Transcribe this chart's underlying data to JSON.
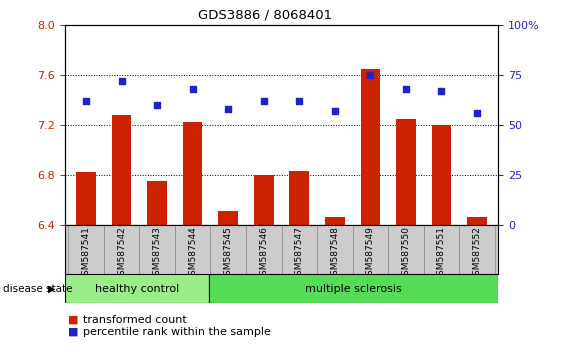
{
  "title": "GDS3886 / 8068401",
  "samples": [
    "GSM587541",
    "GSM587542",
    "GSM587543",
    "GSM587544",
    "GSM587545",
    "GSM587546",
    "GSM587547",
    "GSM587548",
    "GSM587549",
    "GSM587550",
    "GSM587551",
    "GSM587552"
  ],
  "transformed_counts": [
    6.82,
    7.28,
    6.75,
    7.22,
    6.51,
    6.8,
    6.83,
    6.46,
    7.65,
    7.25,
    7.2,
    6.46
  ],
  "percentile_ranks": [
    62,
    72,
    60,
    68,
    58,
    62,
    62,
    57,
    75,
    68,
    67,
    56
  ],
  "left_ylim": [
    6.4,
    8.0
  ],
  "left_yticks": [
    6.4,
    6.8,
    7.2,
    7.6,
    8.0
  ],
  "right_ylim": [
    0,
    100
  ],
  "right_yticks": [
    0,
    25,
    50,
    75,
    100
  ],
  "right_yticklabels": [
    "0",
    "25",
    "50",
    "75",
    "100%"
  ],
  "bar_color": "#cc2200",
  "dot_color": "#2222cc",
  "healthy_control_count": 4,
  "group_labels": [
    "healthy control",
    "multiple sclerosis"
  ],
  "group_colors": [
    "#99ee88",
    "#55dd55"
  ],
  "disease_state_label": "disease state",
  "legend_bar_label": "transformed count",
  "legend_dot_label": "percentile rank within the sample",
  "bg_color": "#cccccc",
  "bar_width": 0.55,
  "bar_baseline": 6.4
}
